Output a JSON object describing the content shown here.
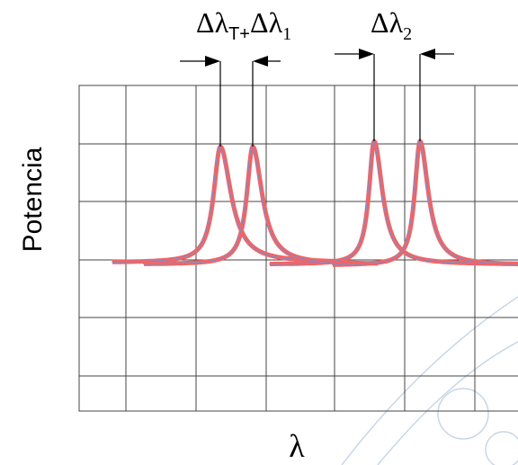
{
  "annotations": [
    {
      "main": "Δλ",
      "sub": "T+"
    },
    {
      "main": "Δλ",
      "sub": "1"
    },
    {
      "main": "Δλ",
      "sub": "2"
    }
  ],
  "y_label": "Potencia",
  "x_label": "λ"
}
